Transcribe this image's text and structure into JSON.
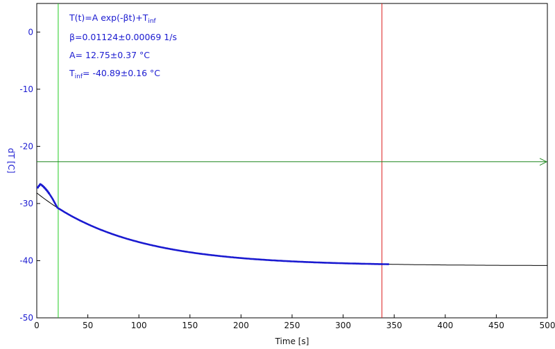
{
  "chart_data": {
    "type": "scatter",
    "xlabel": "Time [s]",
    "ylabel": "dT [C]",
    "xlim": [
      0,
      500
    ],
    "ylim": [
      -50,
      5
    ],
    "xticks": [
      0,
      50,
      100,
      150,
      200,
      250,
      300,
      350,
      400,
      450,
      500
    ],
    "yticks": [
      0,
      -10,
      -20,
      -30,
      -40,
      -50
    ],
    "grid": false,
    "fit": {
      "A": 12.75,
      "beta": 0.01124,
      "T_inf": -40.89,
      "x_range": [
        0,
        500
      ]
    },
    "measured": {
      "peak_x": 3.5,
      "peak_y": -26.6,
      "start_x": 1,
      "end_x": 345
    },
    "markers": {
      "green_vertical_x": 21,
      "red_vertical_x": 338,
      "horizontal_y": -22.7
    },
    "annotations": {
      "model_main": "T(t)=A exp(-βt)+T",
      "model_sub": "inf",
      "beta_line": "β=0.01124±0.00069 1/s",
      "a_line": "A= 12.75±0.37 °C",
      "tinf_main": "T",
      "tinf_sub": "inf",
      "tinf_rest": "= -40.89±0.16 °C"
    },
    "colors": {
      "data": "#1a1ad0",
      "fit": "#000000",
      "green_marker": "#22cc22",
      "red_marker": "#dd2222",
      "horizontal_marker": "#228822",
      "axis_text": "#1a1ad0"
    }
  }
}
